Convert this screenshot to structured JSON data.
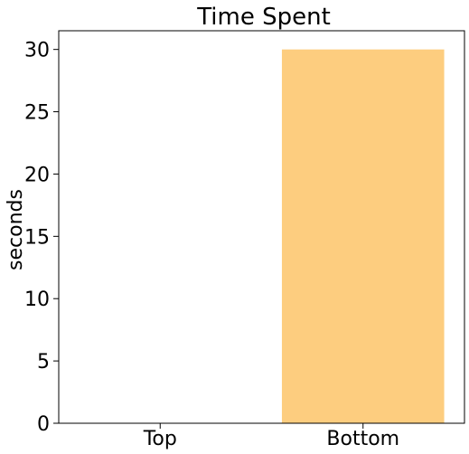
{
  "chart_data": {
    "type": "bar",
    "title": "Time Spent",
    "xlabel": "",
    "ylabel": "seconds",
    "categories": [
      "Top",
      "Bottom"
    ],
    "values": [
      0,
      30
    ],
    "ylim": [
      0,
      31.5
    ],
    "yticks": [
      0,
      5,
      10,
      15,
      20,
      25,
      30
    ],
    "bar_color": "#fdcd7f",
    "grid": false,
    "legend": "none"
  }
}
